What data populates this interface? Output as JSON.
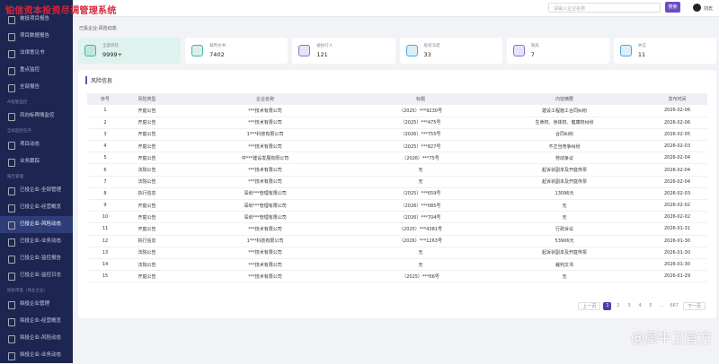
{
  "header": {
    "title": "铂信资本投资尽调管理系统",
    "search_placeholder": "请输入企业名称",
    "search_button": "搜索",
    "user": "刘氏"
  },
  "sidebar": {
    "groups": [
      {
        "items": [
          {
            "label": "被投项目报告"
          },
          {
            "label": "项目数据报告"
          },
          {
            "label": "法律意见书"
          },
          {
            "label": "重点监控"
          },
          {
            "label": "全部报告"
          }
        ]
      },
      {
        "title": "AI智能监控",
        "items": [
          {
            "label": "风向标舆情监控"
          }
        ]
      },
      {
        "title": "全局监控任务",
        "items": [
          {
            "label": "项目动态"
          },
          {
            "label": "业务跟踪"
          }
        ]
      },
      {
        "title": "报告管理",
        "items": [
          {
            "label": "已投企业-全部管理"
          },
          {
            "label": "已投企业-经营概览"
          },
          {
            "label": "已投企业-风险动态",
            "active": true
          },
          {
            "label": "已投企业-业务动态"
          },
          {
            "label": "已投企业-监控报告"
          },
          {
            "label": "已投企业-监控日志"
          }
        ]
      },
      {
        "title": "拟投审查（商业企业）",
        "items": [
          {
            "label": "拟投企业管理"
          },
          {
            "label": "拟投企业-经营概览"
          },
          {
            "label": "拟投企业-风险动态"
          },
          {
            "label": "拟投企业-业务动态"
          }
        ]
      }
    ]
  },
  "breadcrumb": "已投企业-风险动态",
  "cards": [
    {
      "label": "全部风险",
      "value": "9999+",
      "color": "#3fb59a"
    },
    {
      "label": "裁判文书",
      "value": "7402",
      "color": "#3fb59a"
    },
    {
      "label": "被执行人",
      "value": "121",
      "color": "#8b6fd6"
    },
    {
      "label": "股权冻结",
      "value": "33",
      "color": "#4aa8e0"
    },
    {
      "label": "限高",
      "value": "7",
      "color": "#8b6fd6"
    },
    {
      "label": "失信",
      "value": "11",
      "color": "#4aa8e0"
    }
  ],
  "panel_title": "风险信息",
  "table": {
    "headers": [
      "序号",
      "风险类型",
      "企业名称",
      "标题",
      "内容摘要",
      "发布时间"
    ],
    "rows": [
      [
        "1",
        "开庭公告",
        "***技术有限公司",
        "（2025）***9230号",
        "建设工程施工合同纠纷",
        "2026-02-06"
      ],
      [
        "2",
        "开庭公告",
        "***技术有限公司",
        "（2025）***475号",
        "生命权、身体权、健康权纠纷",
        "2026-02-06"
      ],
      [
        "3",
        "开庭公告",
        "1***科技有限公司",
        "（2026）***755号",
        "合同纠纷",
        "2026-02-05"
      ],
      [
        "4",
        "开庭公告",
        "***技术有限公司",
        "（2025）***827号",
        "不正当竞争纠纷",
        "2026-02-03"
      ],
      [
        "5",
        "开庭公告",
        "中***建设发展有限公司",
        "（2026）***75号",
        "劳动争议",
        "2026-02-04"
      ],
      [
        "6",
        "法院公告",
        "***技术有限公司",
        "无",
        "起诉状副本及开庭传票",
        "2026-02-04"
      ],
      [
        "7",
        "法院公告",
        "***技术有限公司",
        "无",
        "起诉状副本及开庭传票",
        "2026-02-04"
      ],
      [
        "8",
        "执行信息",
        "深圳***管理有限公司",
        "（2025）***659号",
        "13096元",
        "2026-02-03"
      ],
      [
        "9",
        "开庭公告",
        "深圳***管理有限公司",
        "（2026）***085号",
        "无",
        "2026-02-02"
      ],
      [
        "10",
        "开庭公告",
        "深圳***管理有限公司",
        "（2026）***704号",
        "无",
        "2026-02-02"
      ],
      [
        "11",
        "开庭公告",
        "***技术有限公司",
        "（2025）***4381号",
        "行政诉讼",
        "2026-01-31"
      ],
      [
        "12",
        "执行信息",
        "1***科技有限公司",
        "（2026）***1263号",
        "53906元",
        "2026-01-30"
      ],
      [
        "13",
        "法院公告",
        "***技术有限公司",
        "无",
        "起诉状副本及开庭传票",
        "2026-01-30"
      ],
      [
        "14",
        "法院公告",
        "***技术有限公司",
        "无",
        "裁判文书",
        "2026-01-30"
      ],
      [
        "15",
        "开庭公告",
        "***技术有限公司",
        "（2025）***66号",
        "无",
        "2026-01-29"
      ]
    ]
  },
  "pagination": {
    "prev": "上一页",
    "pages": [
      "1",
      "2",
      "3",
      "4",
      "5",
      "...",
      "667"
    ],
    "current": "1",
    "next": "下一页"
  },
  "watermark": "@犀牛卫官方"
}
